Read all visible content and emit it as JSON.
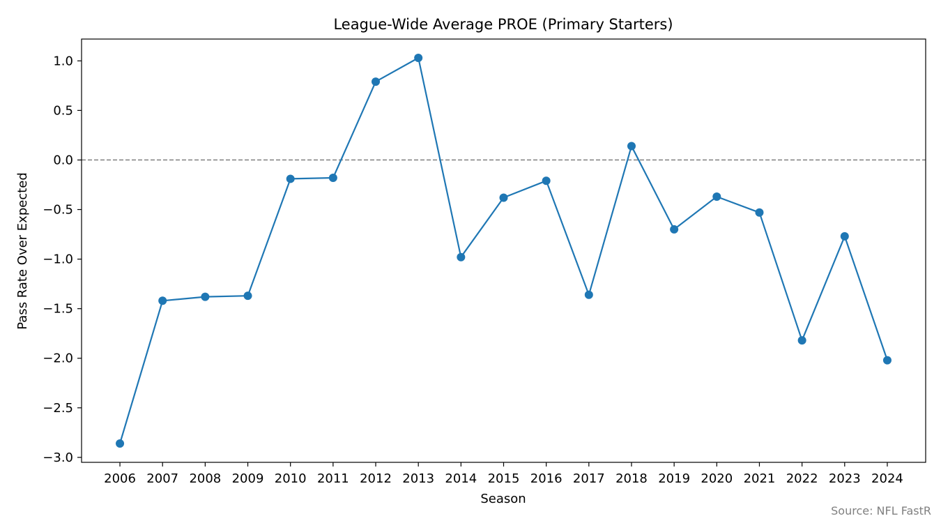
{
  "chart_data": {
    "type": "line",
    "title": "League-Wide Average PROE (Primary Starters)",
    "xlabel": "Season",
    "ylabel": "Pass Rate Over Expected",
    "source": "Source: NFL FastR",
    "x": [
      2006,
      2007,
      2008,
      2009,
      2010,
      2011,
      2012,
      2013,
      2014,
      2015,
      2016,
      2017,
      2018,
      2019,
      2020,
      2021,
      2022,
      2023,
      2024
    ],
    "series": [
      {
        "values": [
          -2.86,
          -1.42,
          -1.38,
          -1.37,
          -0.19,
          -0.18,
          0.79,
          1.03,
          -0.98,
          -0.38,
          -0.21,
          -1.36,
          0.14,
          -0.7,
          -0.37,
          -0.53,
          -1.82,
          -0.77,
          -2.02
        ],
        "color": "#1f77b4"
      }
    ],
    "reference_line": {
      "y": 0.0,
      "style": "dashed",
      "color": "#808080"
    },
    "xticks": [
      "2006",
      "2007",
      "2008",
      "2009",
      "2010",
      "2011",
      "2012",
      "2013",
      "2014",
      "2015",
      "2016",
      "2017",
      "2018",
      "2019",
      "2020",
      "2021",
      "2022",
      "2023",
      "2024"
    ],
    "yticks": [
      1.0,
      0.5,
      0.0,
      -0.5,
      -1.0,
      -1.5,
      -2.0,
      -2.5,
      -3.0
    ],
    "ytick_labels": [
      "1.0",
      "0.5",
      "0.0",
      "−0.5",
      "−1.0",
      "−1.5",
      "−2.0",
      "−2.5",
      "−3.0"
    ],
    "ylim": [
      -3.05,
      1.22
    ],
    "xlim": [
      2005.1,
      2024.9
    ],
    "grid": false,
    "legend": "none"
  }
}
